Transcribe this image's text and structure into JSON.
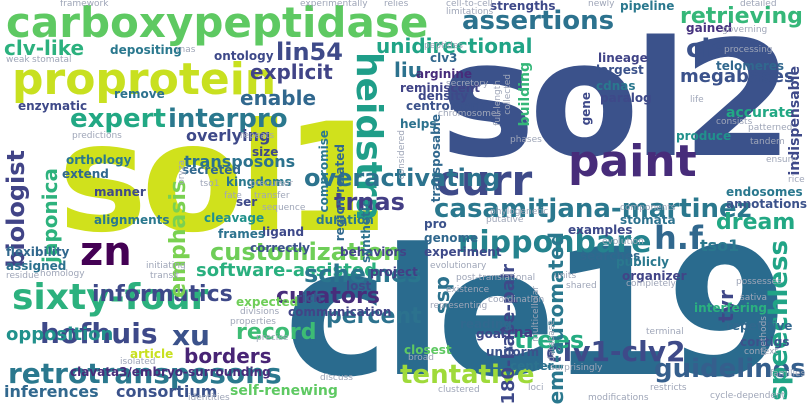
{
  "words": [
    {
      "text": "cle19",
      "color": "#2a6b8e"
    },
    {
      "text": "sol2",
      "color": "#3b528b"
    },
    {
      "text": "sol1",
      "color": "#d0e11c"
    },
    {
      "text": "carboxypeptidase",
      "color": "#5ec962"
    },
    {
      "text": "proprotein",
      "color": "#c8e020"
    },
    {
      "text": "sixty-four",
      "color": "#2cb17e"
    },
    {
      "text": "retrotransposons",
      "color": "#2a788e"
    },
    {
      "text": "nipponbare",
      "color": "#25838e"
    },
    {
      "text": "paint",
      "color": "#472c7a"
    },
    {
      "text": "curr",
      "color": "#3e4a89"
    },
    {
      "text": "heidstra",
      "color": "#1f9e89"
    },
    {
      "text": "casamitjana-martinez",
      "color": "#2a788e"
    },
    {
      "text": "customization",
      "color": "#6ece58"
    },
    {
      "text": "hofhuis",
      "color": "#3e4989"
    },
    {
      "text": "zn",
      "color": "#440154"
    },
    {
      "text": "xu",
      "color": "#3b528b"
    },
    {
      "text": "assertions",
      "color": "#2c728e"
    },
    {
      "text": "lin54",
      "color": "#3e4a89"
    },
    {
      "text": "expert",
      "color": "#22a884"
    },
    {
      "text": "interpro",
      "color": "#2a788e"
    },
    {
      "text": "explicit",
      "color": "#414487"
    },
    {
      "text": "liu",
      "color": "#2c728e"
    },
    {
      "text": "enable",
      "color": "#31688e"
    },
    {
      "text": "unidirectional",
      "color": "#20a486"
    },
    {
      "text": "clv-like",
      "color": "#2cb17e"
    },
    {
      "text": "retrieving",
      "color": "#35b779"
    },
    {
      "text": "cle",
      "color": "#3b528b"
    },
    {
      "text": "informatics",
      "color": "#3e4989"
    },
    {
      "text": "software-assisted",
      "color": "#2ab07f"
    },
    {
      "text": "record",
      "color": "#3dbc74"
    },
    {
      "text": "borders",
      "color": "#482475"
    },
    {
      "text": "curators",
      "color": "#472d7b"
    },
    {
      "text": "percent",
      "color": "#2c728e"
    },
    {
      "text": "schemes",
      "color": "#2a768e"
    },
    {
      "text": "tentative",
      "color": "#9fda3a"
    },
    {
      "text": "clv1-clv2",
      "color": "#3e4a89"
    },
    {
      "text": "guidelines",
      "color": "#355f8d"
    },
    {
      "text": "trees",
      "color": "#25ac82"
    },
    {
      "text": "overactivating",
      "color": "#2c738e"
    },
    {
      "text": "trnas",
      "color": "#433e85"
    },
    {
      "text": "h.f",
      "color": "#31688e"
    },
    {
      "text": "dream",
      "color": "#22a884"
    },
    {
      "text": "speechless",
      "color": "#20a486"
    },
    {
      "text": "tyr",
      "color": "#3f4788"
    },
    {
      "text": "tso1",
      "color": "#2a788e"
    },
    {
      "text": "biologist",
      "color": "#414487"
    },
    {
      "text": "emphasis",
      "color": "#7ad151"
    },
    {
      "text": "japonica",
      "color": "#2db27d"
    },
    {
      "text": "opposition",
      "color": "#21918c"
    },
    {
      "text": "inferences",
      "color": "#31688e"
    },
    {
      "text": "consortium",
      "color": "#3b528b"
    },
    {
      "text": "self-renewing",
      "color": "#5ec962"
    },
    {
      "text": "semi-automated",
      "color": "#2a788e"
    },
    {
      "text": "180-base-pair",
      "color": "#3e4989"
    },
    {
      "text": "ssp",
      "color": "#2c728e"
    },
    {
      "text": "megabases",
      "color": "#3b528b"
    },
    {
      "text": "telomeres",
      "color": "#31688e"
    },
    {
      "text": "accurate",
      "color": "#22a884"
    },
    {
      "text": "transposons",
      "color": "#2c728e"
    },
    {
      "text": "overlying",
      "color": "#3e4989"
    },
    {
      "text": "building",
      "color": "#35b779"
    },
    {
      "text": "arginine",
      "color": "#472c7a"
    },
    {
      "text": "clv3",
      "color": "#31688e"
    },
    {
      "text": "strengths",
      "color": "#3e4989"
    },
    {
      "text": "pipeline",
      "color": "#2a788e"
    },
    {
      "text": "gained",
      "color": "#46337f"
    },
    {
      "text": "lineage",
      "color": "#414487"
    },
    {
      "text": "largest",
      "color": "#3b528b"
    },
    {
      "text": "cdnas",
      "color": "#2a788e"
    },
    {
      "text": "paralog",
      "color": "#3e4989"
    },
    {
      "text": "produce",
      "color": "#21918c"
    },
    {
      "text": "endosomes",
      "color": "#2a788e"
    },
    {
      "text": "annotations",
      "color": "#3b528b"
    },
    {
      "text": "stomata",
      "color": "#2c728e"
    },
    {
      "text": "examples",
      "color": "#3e4989"
    },
    {
      "text": "searches",
      "color": "#31688e"
    },
    {
      "text": "publicly",
      "color": "#2a788e"
    },
    {
      "text": "organizer",
      "color": "#414487"
    },
    {
      "text": "interfering",
      "color": "#2ab07f"
    },
    {
      "text": "repetitive",
      "color": "#31688e"
    },
    {
      "text": "contigs",
      "color": "#3b528b"
    },
    {
      "text": "indispensable",
      "color": "#3e4989"
    },
    {
      "text": "trna",
      "color": "#433e85"
    },
    {
      "text": "uniform",
      "color": "#3b528b"
    },
    {
      "text": "center",
      "color": "#2c728e"
    },
    {
      "text": "closest",
      "color": "#5ec962"
    },
    {
      "text": "goal",
      "color": "#3e4989"
    },
    {
      "text": "reading",
      "color": "#31688e"
    },
    {
      "text": "communication",
      "color": "#414487"
    },
    {
      "text": "rich",
      "color": "#3b528b"
    },
    {
      "text": "expected",
      "color": "#6ece58"
    },
    {
      "text": "project",
      "color": "#433e85"
    },
    {
      "text": "lost",
      "color": "#3e4989"
    },
    {
      "text": "behaviors",
      "color": "#414487"
    },
    {
      "text": "duration",
      "color": "#2a788e"
    },
    {
      "text": "pro",
      "color": "#3b528b"
    },
    {
      "text": "genome",
      "color": "#31688e"
    },
    {
      "text": "experiment",
      "color": "#3e4989"
    },
    {
      "text": "synthetic",
      "color": "#2c728e"
    },
    {
      "text": "ligand",
      "color": "#3e4989"
    },
    {
      "text": "frames",
      "color": "#2c728e"
    },
    {
      "text": "correctly",
      "color": "#3b528b"
    },
    {
      "text": "cleavage",
      "color": "#21918c"
    },
    {
      "text": "kingdoms",
      "color": "#2a788e"
    },
    {
      "text": "secreted",
      "color": "#31688e"
    },
    {
      "text": "size",
      "color": "#3e4989"
    },
    {
      "text": "alignments",
      "color": "#2a788e"
    },
    {
      "text": "flexibility",
      "color": "#31688e"
    },
    {
      "text": "assigned",
      "color": "#2c728e"
    },
    {
      "text": "manner",
      "color": "#3e4989"
    },
    {
      "text": "extend",
      "color": "#31688e"
    },
    {
      "text": "orthology",
      "color": "#2a788e"
    },
    {
      "text": "enzymatic",
      "color": "#3e4989"
    },
    {
      "text": "remove",
      "color": "#2c728e"
    },
    {
      "text": "ontology",
      "color": "#3e4989"
    },
    {
      "text": "depositing",
      "color": "#2a788e"
    },
    {
      "text": "clavata3/embryo-surrounding",
      "color": "#472c7a"
    },
    {
      "text": "article",
      "color": "#c8e020"
    },
    {
      "text": "ser",
      "color": "#3e4989"
    },
    {
      "text": "compromise",
      "color": "#2a788e"
    },
    {
      "text": "region-related",
      "color": "#31688e"
    },
    {
      "text": "reminiscent",
      "color": "#414487"
    },
    {
      "text": "centromeric",
      "color": "#3b528b"
    },
    {
      "text": "helps",
      "color": "#2c728e"
    },
    {
      "text": "density",
      "color": "#3e4989"
    },
    {
      "text": "transposable",
      "color": "#31688e"
    },
    {
      "text": "gene",
      "color": "#3e4989"
    },
    {
      "text": "framework",
      "color": "#9fa6b8"
    },
    {
      "text": "experimentally",
      "color": "#9fa6b8"
    },
    {
      "text": "relies",
      "color": "#9fa6b8"
    },
    {
      "text": "cell-to-cell",
      "color": "#9fa6b8"
    },
    {
      "text": "limitations",
      "color": "#9fa6b8"
    },
    {
      "text": "newly",
      "color": "#9fa6b8"
    },
    {
      "text": "detailed",
      "color": "#9fa6b8"
    },
    {
      "text": "governing",
      "color": "#9fa6b8"
    },
    {
      "text": "processing",
      "color": "#9fa6b8"
    },
    {
      "text": "weak",
      "color": "#9fa6b8"
    },
    {
      "text": "stomatal",
      "color": "#9fa6b8"
    },
    {
      "text": "rnas",
      "color": "#9fa6b8"
    },
    {
      "text": "peptides",
      "color": "#9fa6b8"
    },
    {
      "text": "collected",
      "color": "#9fa6b8"
    },
    {
      "text": "secretory",
      "color": "#9fa6b8"
    },
    {
      "text": "full-length",
      "color": "#9fa6b8"
    },
    {
      "text": "chromosomes",
      "color": "#9fa6b8"
    },
    {
      "text": "life",
      "color": "#9fa6b8"
    },
    {
      "text": "consists",
      "color": "#9fa6b8"
    },
    {
      "text": "patterned",
      "color": "#9fa6b8"
    },
    {
      "text": "tandem",
      "color": "#9fa6b8"
    },
    {
      "text": "repeats",
      "color": "#9fa6b8"
    },
    {
      "text": "predictions",
      "color": "#9fa6b8"
    },
    {
      "text": "considered",
      "color": "#9fa6b8"
    },
    {
      "text": "phases",
      "color": "#9fa6b8"
    },
    {
      "text": "ensure",
      "color": "#9fa6b8"
    },
    {
      "text": "rice",
      "color": "#9fa6b8"
    },
    {
      "text": "oryza",
      "color": "#9fa6b8"
    },
    {
      "text": "fate",
      "color": "#9fa6b8"
    },
    {
      "text": "tso1",
      "color": "#9fa6b8"
    },
    {
      "text": "precursor",
      "color": "#9fa6b8"
    },
    {
      "text": "transfer",
      "color": "#9fa6b8"
    },
    {
      "text": "sequence",
      "color": "#9fa6b8"
    },
    {
      "text": "putative",
      "color": "#9fa6b8"
    },
    {
      "text": "phylogenetic",
      "color": "#9fa6b8"
    },
    {
      "text": "evolution",
      "color": "#9fa6b8"
    },
    {
      "text": "components",
      "color": "#9fa6b8"
    },
    {
      "text": "initiating",
      "color": "#9fa6b8"
    },
    {
      "text": "homology",
      "color": "#9fa6b8"
    },
    {
      "text": "transit",
      "color": "#9fa6b8"
    },
    {
      "text": "residue",
      "color": "#9fa6b8"
    },
    {
      "text": "evolutionary",
      "color": "#9fa6b8"
    },
    {
      "text": "post-translational",
      "color": "#9fa6b8"
    },
    {
      "text": "units",
      "color": "#9fa6b8"
    },
    {
      "text": "shared",
      "color": "#9fa6b8"
    },
    {
      "text": "completely",
      "color": "#9fa6b8"
    },
    {
      "text": "possesses",
      "color": "#9fa6b8"
    },
    {
      "text": "sativa",
      "color": "#9fa6b8"
    },
    {
      "text": "coordination",
      "color": "#9fa6b8"
    },
    {
      "text": "multicellular",
      "color": "#9fa6b8"
    },
    {
      "text": "divisions",
      "color": "#9fa6b8"
    },
    {
      "text": "existence",
      "color": "#9fa6b8"
    },
    {
      "text": "properties",
      "color": "#9fa6b8"
    },
    {
      "text": "representing",
      "color": "#9fa6b8"
    },
    {
      "text": "database",
      "color": "#9fa6b8"
    },
    {
      "text": "precise",
      "color": "#9fa6b8"
    },
    {
      "text": "isolated",
      "color": "#9fa6b8"
    },
    {
      "text": "broad",
      "color": "#9fa6b8"
    },
    {
      "text": "terminal",
      "color": "#9fa6b8"
    },
    {
      "text": "methods",
      "color": "#9fa6b8"
    },
    {
      "text": "context",
      "color": "#9fa6b8"
    },
    {
      "text": "families",
      "color": "#9fa6b8"
    },
    {
      "text": "surprisingly",
      "color": "#9fa6b8"
    },
    {
      "text": "clustered",
      "color": "#9fa6b8"
    },
    {
      "text": "discuss",
      "color": "#9fa6b8"
    },
    {
      "text": "identities",
      "color": "#9fa6b8"
    },
    {
      "text": "loci",
      "color": "#9fa6b8"
    },
    {
      "text": "modifications",
      "color": "#9fa6b8"
    },
    {
      "text": "restricts",
      "color": "#9fa6b8"
    },
    {
      "text": "cycle-dependent",
      "color": "#9fa6b8"
    }
  ]
}
